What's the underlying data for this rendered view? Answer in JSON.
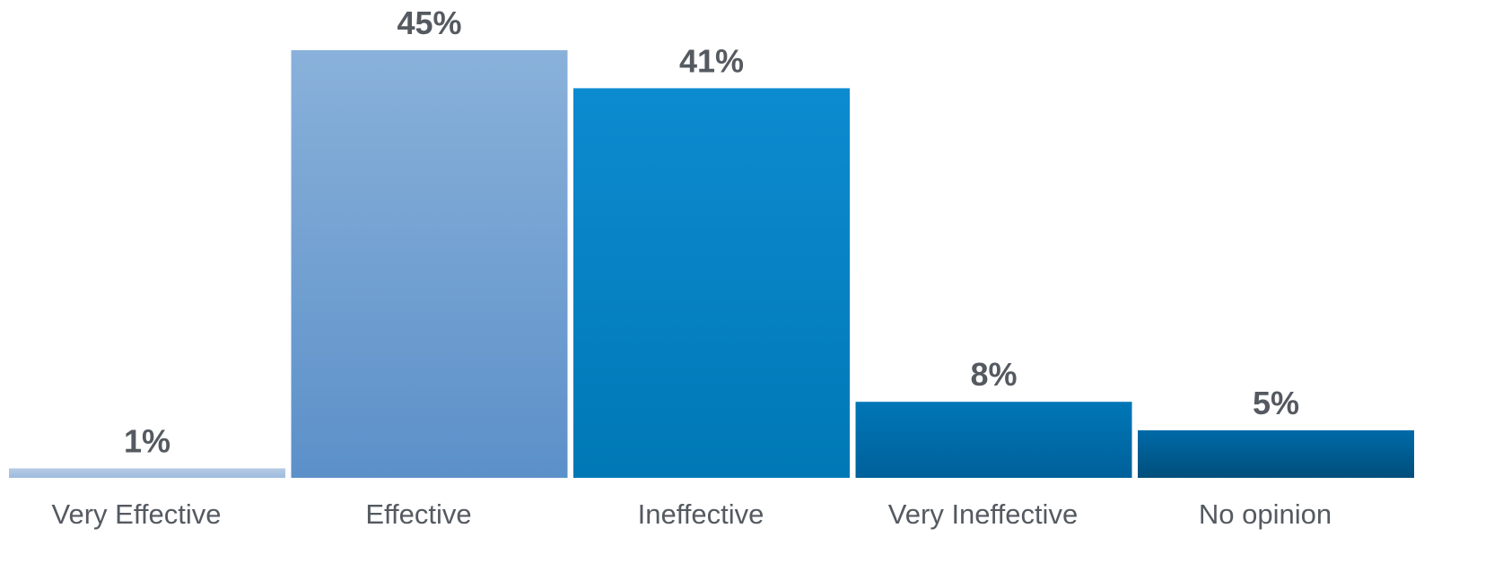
{
  "chart_data": {
    "type": "bar",
    "categories": [
      "Very Effective",
      "Effective",
      "Ineffective",
      "Very Ineffective",
      "No opinion"
    ],
    "values": [
      1,
      45,
      41,
      8,
      5
    ],
    "value_labels": [
      "1%",
      "45%",
      "41%",
      "8%",
      "5%"
    ],
    "unit": "%",
    "title": "",
    "xlabel": "",
    "ylabel": "",
    "ylim": [
      0,
      45
    ],
    "grid": false,
    "legend": "none",
    "bar_colors": [
      {
        "top": "#b7cbe4",
        "bottom": "#9dbbdf"
      },
      {
        "top": "#89b1da",
        "bottom": "#5c90c9"
      },
      {
        "top": "#0d8bd0",
        "bottom": "#0078b6"
      },
      {
        "top": "#0077b7",
        "bottom": "#00609a"
      },
      {
        "top": "#006aa8",
        "bottom": "#004f7b"
      }
    ],
    "label_color": "#555a61"
  }
}
